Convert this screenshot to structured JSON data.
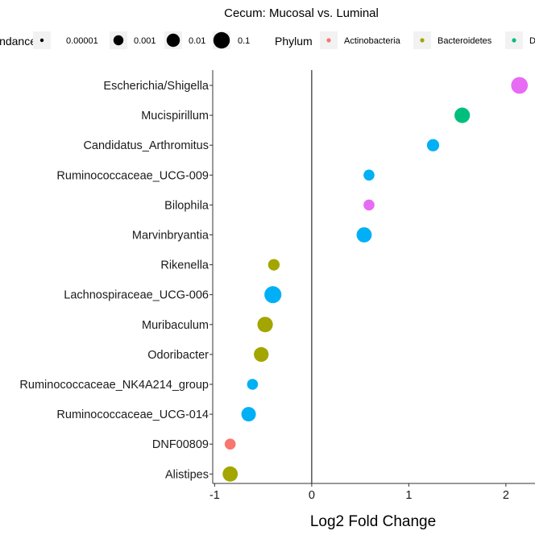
{
  "chart_data": {
    "type": "scatter",
    "title": "Cecum: Mucosal vs. Luminal",
    "xlabel": "Log2 Fold Change",
    "ylabel": "",
    "xlim": [
      -1.02,
      2.3
    ],
    "xticks": [
      -1,
      0,
      1,
      2
    ],
    "vline_at": 0,
    "grid": false,
    "legend_position": "top",
    "size_legend": {
      "title": "Abundance",
      "visible_title": "ndance",
      "entries": [
        {
          "label": "0.00001",
          "value": 1e-05
        },
        {
          "label": "0.001",
          "value": 0.001
        },
        {
          "label": "0.01",
          "value": 0.01
        },
        {
          "label": "0.1",
          "value": 0.1
        }
      ]
    },
    "color_legend": {
      "title": "Phylum",
      "entries": [
        {
          "label": "Actinobacteria",
          "color": "#F8766D"
        },
        {
          "label": "Bacteroidetes",
          "color": "#A3A500"
        },
        {
          "label": "D",
          "color": "#00BF7D"
        }
      ]
    },
    "categories": [
      "Escherichia/Shigella",
      "Mucispirillum",
      "Candidatus_Arthromitus",
      "Ruminococcaceae_UCG-009",
      "Bilophila",
      "Marvinbryantia",
      "Rikenella",
      "Lachnospiraceae_UCG-006",
      "Muribaculum",
      "Odoribacter",
      "Ruminococcaceae_NK4A214_group",
      "Ruminococcaceae_UCG-014",
      "DNF00809",
      "Alistipes"
    ],
    "points": [
      {
        "genus": "Escherichia/Shigella",
        "log2fc": 2.14,
        "abundance": 0.12,
        "color": "#E76BF3"
      },
      {
        "genus": "Mucispirillum",
        "log2fc": 1.55,
        "abundance": 0.05,
        "color": "#00BF7D"
      },
      {
        "genus": "Candidatus_Arthromitus",
        "log2fc": 1.25,
        "abundance": 0.005,
        "color": "#00B0F6"
      },
      {
        "genus": "Ruminococcaceae_UCG-009",
        "log2fc": 0.59,
        "abundance": 0.002,
        "color": "#00B0F6"
      },
      {
        "genus": "Bilophila",
        "log2fc": 0.59,
        "abundance": 0.002,
        "color": "#E76BF3"
      },
      {
        "genus": "Marvinbryantia",
        "log2fc": 0.54,
        "abundance": 0.04,
        "color": "#00B0F6"
      },
      {
        "genus": "Rikenella",
        "log2fc": -0.39,
        "abundance": 0.003,
        "color": "#A3A500"
      },
      {
        "genus": "Lachnospiraceae_UCG-006",
        "log2fc": -0.4,
        "abundance": 0.15,
        "color": "#00B0F6"
      },
      {
        "genus": "Muribaculum",
        "log2fc": -0.48,
        "abundance": 0.05,
        "color": "#A3A500"
      },
      {
        "genus": "Odoribacter",
        "log2fc": -0.52,
        "abundance": 0.03,
        "color": "#A3A500"
      },
      {
        "genus": "Ruminococcaceae_NK4A214_group",
        "log2fc": -0.61,
        "abundance": 0.002,
        "color": "#00B0F6"
      },
      {
        "genus": "Ruminococcaceae_UCG-014",
        "log2fc": -0.65,
        "abundance": 0.025,
        "color": "#00B0F6"
      },
      {
        "genus": "DNF00809",
        "log2fc": -0.84,
        "abundance": 0.002,
        "color": "#F8766D"
      },
      {
        "genus": "Alistipes",
        "log2fc": -0.84,
        "abundance": 0.04,
        "color": "#A3A500"
      }
    ]
  }
}
